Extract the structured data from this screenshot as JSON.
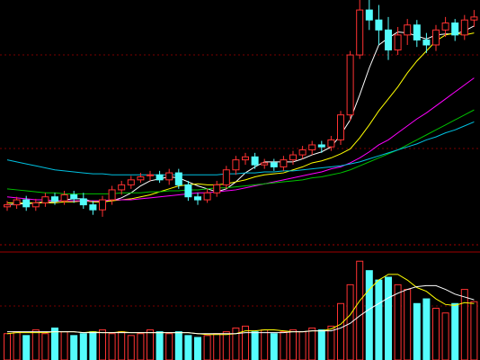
{
  "chart_data": [
    {
      "type": "candlestick",
      "ylim": [
        40,
        285
      ],
      "up_color": "#ff3232",
      "down_color": "#54fcfc",
      "open": [
        78,
        80,
        85,
        78,
        82,
        88,
        84,
        90,
        86,
        80,
        75,
        85,
        95,
        100,
        105,
        110,
        110,
        105,
        112,
        100,
        88,
        85,
        92,
        100,
        115,
        125,
        128,
        120,
        122,
        118,
        125,
        130,
        135,
        140,
        138,
        145,
        170,
        230,
        275,
        265,
        255,
        235,
        250,
        260,
        245,
        240,
        255,
        262,
        250,
        265
      ],
      "high": [
        84,
        88,
        89,
        86,
        92,
        92,
        94,
        94,
        92,
        84,
        89,
        99,
        104,
        109,
        112,
        114,
        114,
        116,
        116,
        104,
        92,
        96,
        104,
        119,
        129,
        132,
        132,
        126,
        126,
        129,
        134,
        139,
        144,
        144,
        149,
        174,
        234,
        290,
        290,
        280,
        268,
        258,
        266,
        265,
        252,
        260,
        268,
        266,
        270,
        275
      ],
      "low": [
        74,
        76,
        74,
        74,
        78,
        80,
        80,
        82,
        76,
        70,
        68,
        80,
        90,
        96,
        102,
        104,
        102,
        100,
        96,
        84,
        80,
        82,
        88,
        96,
        110,
        120,
        116,
        116,
        114,
        114,
        120,
        126,
        130,
        132,
        134,
        140,
        164,
        226,
        255,
        240,
        225,
        230,
        240,
        238,
        232,
        234,
        248,
        244,
        245,
        258
      ],
      "close": [
        80,
        85,
        78,
        82,
        88,
        84,
        90,
        86,
        80,
        75,
        85,
        95,
        100,
        105,
        108,
        110,
        105,
        112,
        100,
        88,
        85,
        92,
        100,
        115,
        125,
        128,
        120,
        122,
        118,
        125,
        130,
        135,
        140,
        138,
        145,
        170,
        230,
        275,
        265,
        255,
        235,
        250,
        260,
        245,
        240,
        255,
        262,
        250,
        265,
        268
      ],
      "series": [
        {
          "color": "#ffffff",
          "values": [
            80,
            81,
            81,
            82,
            83,
            83,
            85,
            86,
            86,
            83,
            83,
            84,
            87,
            92,
            99,
            104,
            106,
            108,
            107,
            103,
            99,
            96,
            93,
            96,
            103,
            112,
            118,
            123,
            123,
            123,
            123,
            126,
            130,
            133,
            138,
            150,
            165,
            190,
            217,
            240,
            247,
            253,
            252,
            249,
            246,
            250,
            251,
            251,
            254,
            259
          ]
        },
        {
          "color": "#ffff00",
          "values": [
            82,
            82,
            82,
            82,
            82,
            82,
            83,
            83,
            84,
            83,
            83,
            84,
            85,
            86,
            88,
            90,
            93,
            96,
            99,
            100,
            101,
            100,
            100,
            101,
            103,
            105,
            108,
            110,
            111,
            112,
            115,
            118,
            122,
            124,
            127,
            131,
            136,
            147,
            160,
            174,
            186,
            198,
            212,
            224,
            234,
            244,
            250,
            252,
            250,
            252
          ]
        },
        {
          "color": "#ff00ff",
          "values": [
            88,
            87,
            86,
            85,
            85,
            84,
            84,
            84,
            84,
            84,
            84,
            85,
            85,
            85,
            86,
            87,
            88,
            89,
            90,
            91,
            92,
            92,
            93,
            94,
            95,
            97,
            99,
            101,
            103,
            105,
            107,
            109,
            111,
            113,
            116,
            118,
            122,
            127,
            133,
            140,
            145,
            152,
            159,
            166,
            172,
            179,
            186,
            193,
            200,
            207
          ]
        },
        {
          "color": "#00c000",
          "values": [
            96,
            95,
            94,
            93,
            92,
            92,
            91,
            91,
            91,
            91,
            91,
            91,
            92,
            92,
            92,
            93,
            93,
            94,
            94,
            95,
            95,
            96,
            97,
            97,
            98,
            99,
            100,
            101,
            102,
            103,
            104,
            105,
            107,
            108,
            110,
            112,
            115,
            119,
            123,
            127,
            131,
            135,
            140,
            145,
            150,
            155,
            160,
            165,
            170,
            175
          ]
        },
        {
          "color": "#00c0e0",
          "values": [
            125,
            123,
            121,
            119,
            117,
            115,
            114,
            113,
            112,
            111,
            111,
            110,
            110,
            110,
            110,
            110,
            110,
            110,
            110,
            110,
            110,
            110,
            110,
            111,
            111,
            112,
            112,
            113,
            113,
            114,
            114,
            115,
            116,
            117,
            118,
            119,
            121,
            123,
            126,
            129,
            132,
            135,
            138,
            141,
            145,
            148,
            152,
            155,
            159,
            163
          ]
        }
      ]
    },
    {
      "type": "volume",
      "ylim": [
        0,
        110
      ],
      "values": [
        28,
        30,
        26,
        32,
        28,
        34,
        30,
        26,
        28,
        30,
        32,
        28,
        30,
        26,
        28,
        32,
        30,
        28,
        30,
        26,
        24,
        26,
        28,
        30,
        34,
        36,
        30,
        32,
        28,
        30,
        32,
        30,
        34,
        32,
        36,
        60,
        80,
        105,
        95,
        85,
        88,
        80,
        75,
        60,
        65,
        55,
        50,
        60,
        75,
        62
      ],
      "series": [
        {
          "color": "#ffff00",
          "values": [
            28,
            29,
            29,
            29,
            29,
            30,
            30,
            30,
            29,
            30,
            29,
            29,
            30,
            29,
            29,
            29,
            29,
            29,
            29,
            29,
            28,
            27,
            27,
            27,
            28,
            31,
            31,
            32,
            32,
            31,
            30,
            30,
            31,
            31,
            33,
            38,
            48,
            63,
            75,
            85,
            91,
            91,
            85,
            77,
            73,
            65,
            59,
            58,
            61,
            60
          ]
        },
        {
          "color": "#ffffff",
          "values": [
            30,
            30,
            30,
            30,
            30,
            30,
            30,
            30,
            29,
            29,
            29,
            29,
            29,
            29,
            29,
            29,
            29,
            29,
            29,
            29,
            28,
            28,
            28,
            28,
            28,
            29,
            29,
            29,
            29,
            29,
            30,
            30,
            31,
            31,
            31,
            34,
            39,
            47,
            54,
            60,
            66,
            71,
            75,
            78,
            79,
            79,
            75,
            70,
            67,
            64
          ]
        }
      ]
    }
  ]
}
